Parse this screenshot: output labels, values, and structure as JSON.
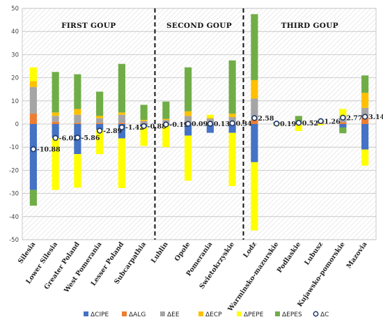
{
  "chart_data": {
    "type": "bar",
    "stacked": true,
    "categories": [
      "Silesia",
      "Lower Silesia",
      "Greater Poland",
      "West Pomerania",
      "Lesser Poland",
      "Subcarpathia",
      "Lublin",
      "Opole",
      "Pomerania",
      "Swietokrzyskie",
      "Lodz",
      "Warminsko-mazurskie",
      "Podlaskie",
      "Lubusz",
      "Kujawsko-pomorskie",
      "Mazovia"
    ],
    "ylim": [
      -50,
      50
    ],
    "yticks": [
      -50,
      -40,
      -30,
      -20,
      -10,
      0,
      10,
      20,
      30,
      40,
      50
    ],
    "grid": "hatched",
    "legend_position": "bottom",
    "groups": [
      {
        "label": "FIRST GOUP",
        "start": 0,
        "end": 5
      },
      {
        "label": "SECOND GOUP",
        "start": 6,
        "end": 9
      },
      {
        "label": "THIRD GOUP",
        "start": 10,
        "end": 15
      }
    ],
    "series": [
      {
        "name": "ΔCIPE",
        "color": "#4472C4",
        "values": [
          -28.5,
          -6.0,
          -13.0,
          -2.5,
          -6.2,
          -1.3,
          -0.5,
          -5.0,
          -3.8,
          -3.8,
          -16.5,
          0,
          0,
          0,
          -1.5,
          -11.0
        ]
      },
      {
        "name": "ΔALG",
        "color": "#ED7D31",
        "values": [
          4.5,
          1.0,
          0.5,
          0.5,
          0.5,
          0.3,
          0.2,
          0.5,
          0.3,
          0.5,
          2.0,
          0.1,
          0.2,
          0.2,
          0.8,
          3.0
        ]
      },
      {
        "name": "ΔEE",
        "color": "#A5A5A5",
        "values": [
          11.5,
          2.5,
          3.5,
          2.0,
          3.5,
          1.0,
          1.5,
          3.0,
          2.0,
          2.5,
          9.0,
          0.2,
          0.5,
          0.5,
          2.0,
          4.0
        ]
      },
      {
        "name": "ΔECP",
        "color": "#FFC000",
        "values": [
          2.5,
          1.5,
          2.5,
          1.0,
          1.0,
          0.5,
          0.5,
          2.0,
          0.5,
          1.5,
          8.0,
          0.2,
          0.3,
          0.3,
          0.7,
          6.5
        ]
      },
      {
        "name": "ΔPEPE",
        "color": "#FFFF00",
        "values": [
          6.0,
          -22.5,
          -14.5,
          -10.5,
          -21.5,
          -8.2,
          -9.5,
          -19.5,
          1.2,
          -23.0,
          -29.5,
          -0.8,
          -3.0,
          -0.5,
          3.0,
          -7.0
        ]
      },
      {
        "name": "ΔEPES",
        "color": "#70AD47",
        "values": [
          -6.8,
          17.5,
          15.0,
          10.5,
          21.0,
          6.5,
          7.5,
          19.0,
          0,
          23.0,
          28.5,
          0.3,
          2.5,
          0.5,
          -2.5,
          7.5
        ]
      }
    ],
    "total": {
      "name": "ΔC",
      "values": [
        -10.88,
        -6.02,
        -5.86,
        -2.89,
        -1.42,
        -0.88,
        -0.19,
        0.09,
        0.13,
        0.34,
        2.58,
        0.19,
        0.52,
        1.26,
        2.77,
        3.14
      ],
      "labels": [
        "-10.88",
        "-6.02",
        "-5.86",
        "-2.89",
        "-1.42",
        "-0.88",
        "-0.19",
        "0.09",
        "0.13",
        "0.34",
        "2.58",
        "0.19",
        "0.52",
        "1.26",
        "2.77",
        "3.14"
      ]
    }
  }
}
